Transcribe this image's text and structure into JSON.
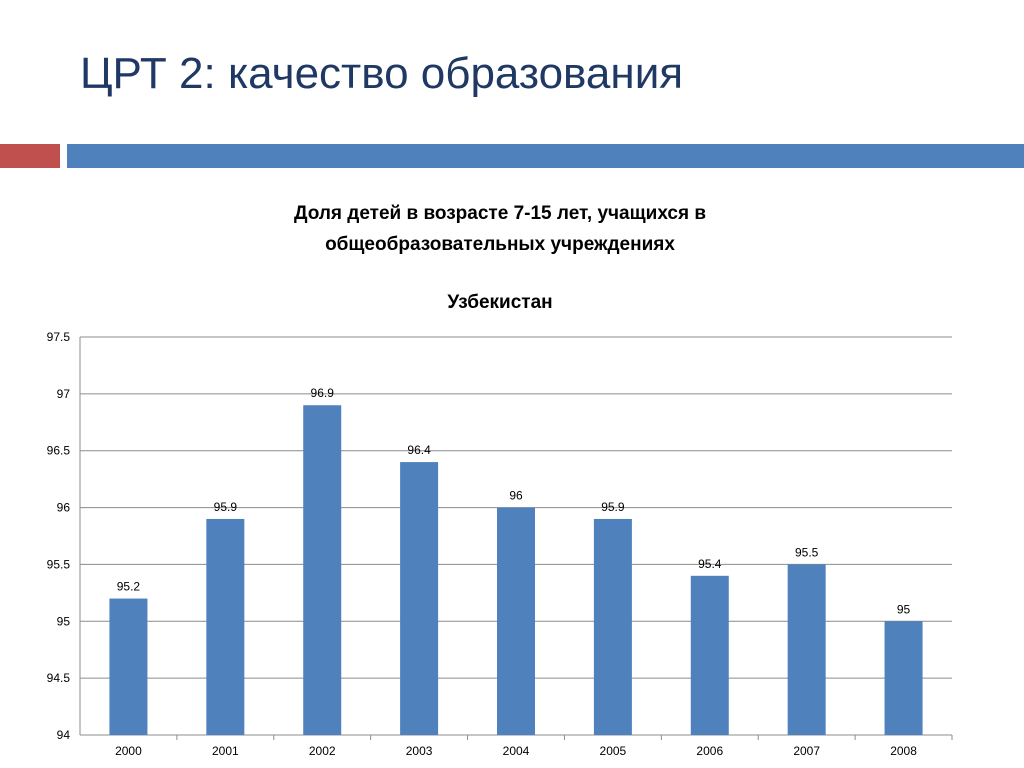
{
  "slide": {
    "title": "ЦРТ 2: качество образования"
  },
  "colors": {
    "title": "#1f3864",
    "accent_red": "#c0504d",
    "accent_blue": "#4f81bd",
    "bar": "#4f81bd"
  },
  "chart_data": {
    "type": "bar",
    "title": "Доля детей в возрасте 7-15 лет, учащихся в общеобразовательных учреждениях",
    "subtitle": "Узбекистан",
    "categories": [
      "2000",
      "2001",
      "2002",
      "2003",
      "2004",
      "2005",
      "2006",
      "2007",
      "2008"
    ],
    "values": [
      95.2,
      95.9,
      96.9,
      96.4,
      96,
      95.9,
      95.4,
      95.5,
      95
    ],
    "value_labels": [
      "95.2",
      "95.9",
      "96.9",
      "96.4",
      "96",
      "95.9",
      "95.4",
      "95.5",
      "95"
    ],
    "ylim": [
      94,
      97.5
    ],
    "yticks": [
      "94",
      "94.5",
      "95",
      "95.5",
      "96",
      "96.5",
      "97",
      "97.5"
    ],
    "grid": true,
    "legend": "none"
  }
}
